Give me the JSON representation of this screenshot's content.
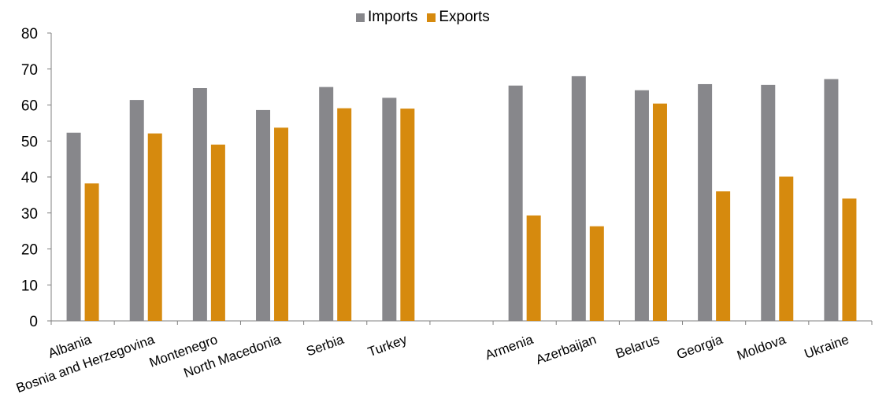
{
  "chart_data": {
    "type": "bar",
    "categories": [
      "Albania",
      "Bosnia and Herzegovina",
      "Montenegro",
      "North Macedonia",
      "Serbia",
      "Turkey",
      "",
      "Armenia",
      "Azerbaijan",
      "Belarus",
      "Georgia",
      "Moldova",
      "Ukraine"
    ],
    "series": [
      {
        "name": "Imports",
        "color": "#87878b",
        "values": [
          52.3,
          61.4,
          64.7,
          58.6,
          65.0,
          62.0,
          null,
          65.4,
          68.0,
          64.1,
          65.8,
          65.6,
          67.2
        ]
      },
      {
        "name": "Exports",
        "color": "#d68a0e",
        "values": [
          38.2,
          52.1,
          49.0,
          53.7,
          59.1,
          59.0,
          null,
          29.3,
          26.3,
          60.4,
          36.0,
          40.1,
          34.0
        ]
      }
    ],
    "yticks": [
      0,
      10,
      20,
      30,
      40,
      50,
      60,
      70,
      80
    ],
    "ylim": [
      0,
      80
    ],
    "legend_position": "top-center",
    "grid": false
  }
}
